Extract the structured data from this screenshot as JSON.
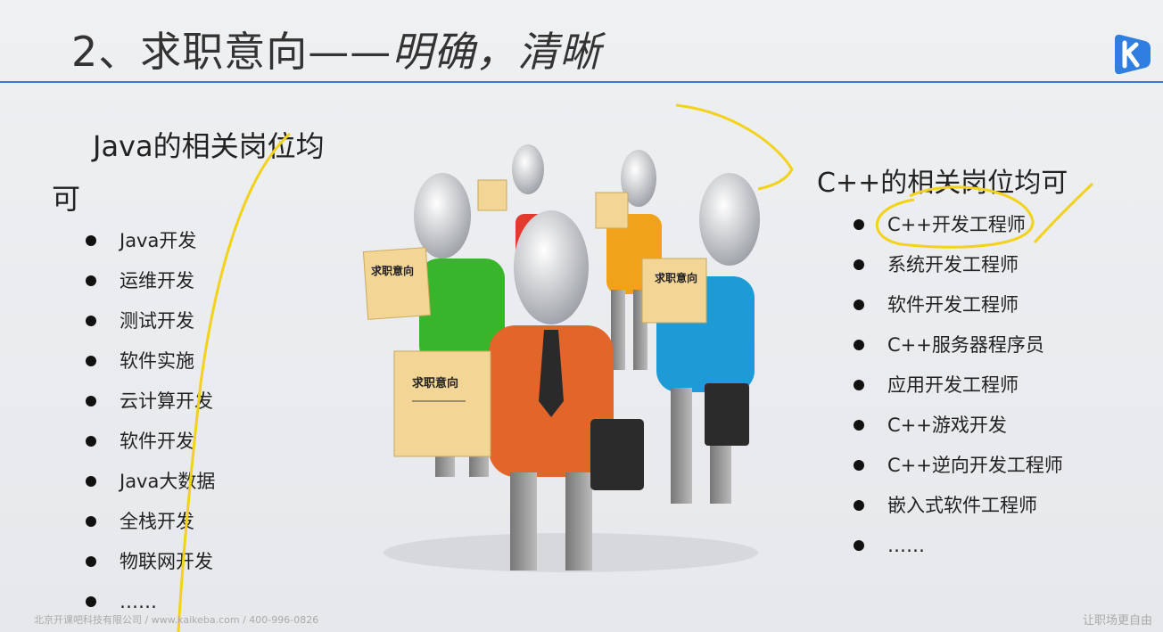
{
  "title": {
    "main": "2、求职意向——",
    "emphasis": "明确，清晰"
  },
  "logo": {
    "icon": "kaikeba-k-logo-icon",
    "color": "#2f7fe0"
  },
  "java": {
    "heading_line1": "Java的相关岗位均",
    "heading_line2": "可",
    "items": [
      "Java开发",
      "运维开发",
      "测试开发",
      "软件实施",
      "云计算开发",
      "软件开发",
      "Java大数据",
      "全栈开发",
      "物联网开发",
      "……"
    ]
  },
  "cpp": {
    "heading": "C++的相关岗位均可",
    "items": [
      "C++开发工程师",
      "系统开发工程师",
      "软件开发工程师",
      "C++服务器程序员",
      "应用开发工程师",
      "C++游戏开发",
      "C++逆向开发工程师",
      "嵌入式软件工程师",
      "……"
    ]
  },
  "illustration": {
    "sign_text": "求职意向",
    "figure_colors": [
      "#e23a2f",
      "#f0a21a",
      "#38b52b",
      "#1d9bd6",
      "#e2652a"
    ]
  },
  "footer": {
    "left": "北京开课吧科技有限公司  /  www.kaikeba.com  /  400-996-0826",
    "right": "让职场更自由"
  },
  "colors": {
    "accent": "#3a78d8",
    "annotation": "#f2d21a"
  }
}
